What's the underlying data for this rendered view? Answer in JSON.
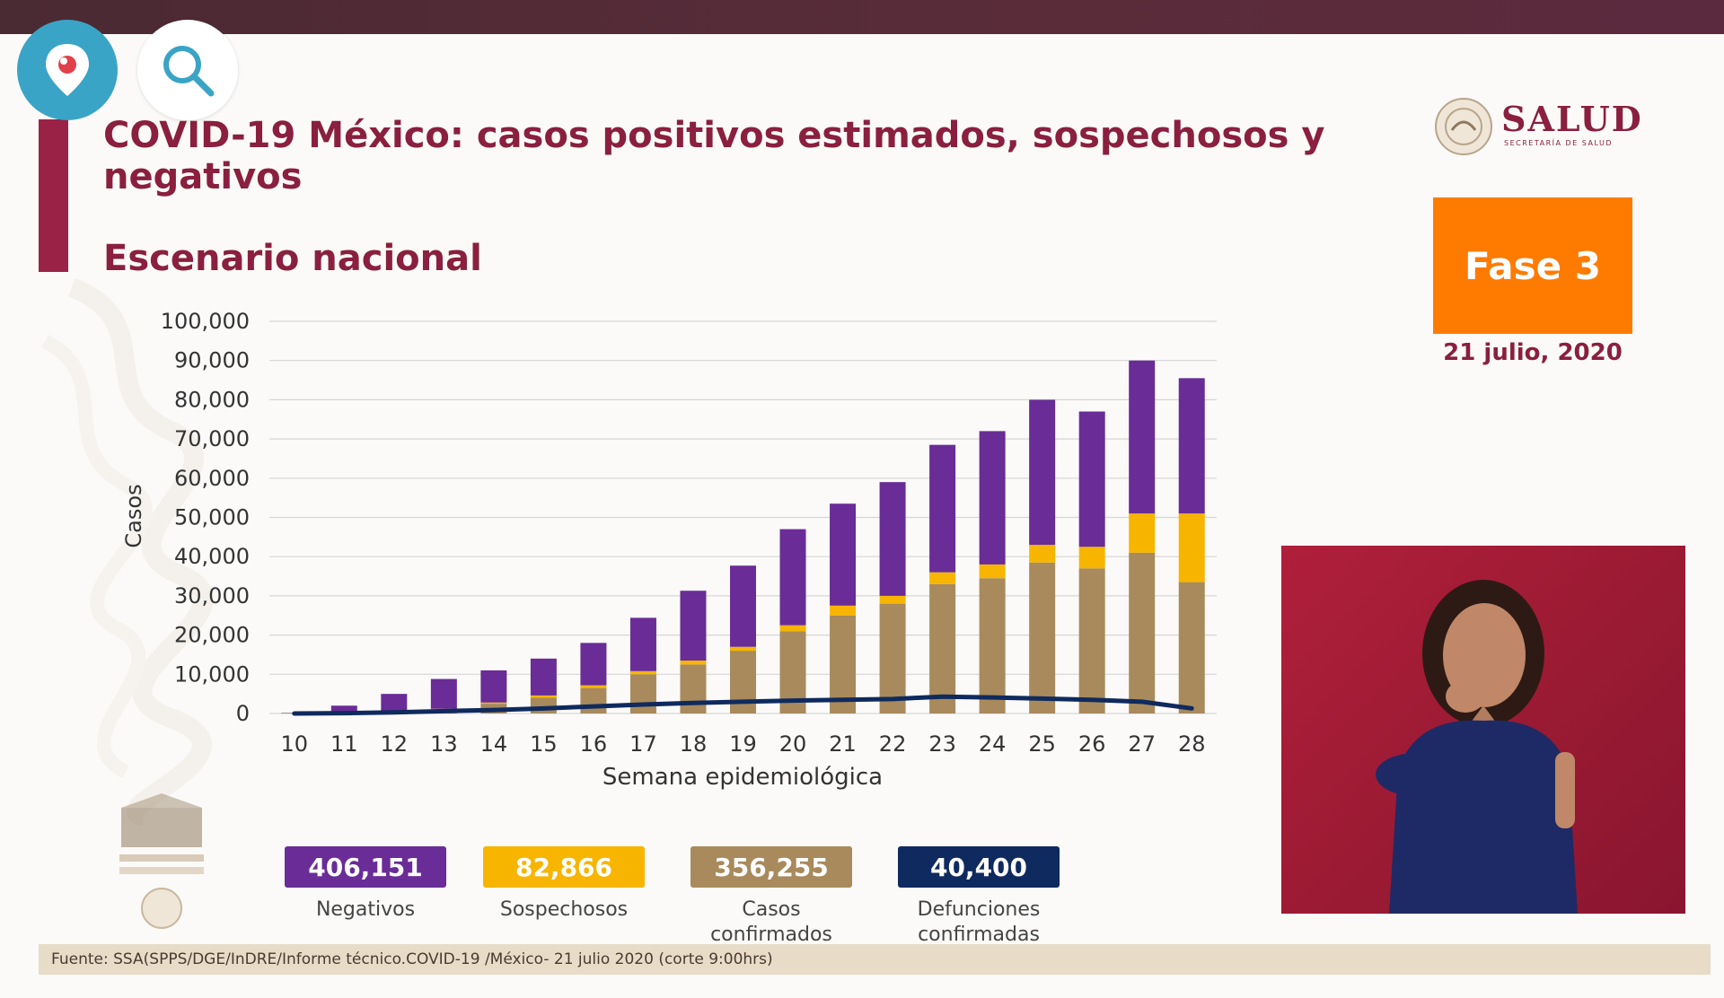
{
  "header": {
    "title": "COVID-19 México: casos positivos estimados, sospechosos y negativos",
    "subtitle": "Escenario nacional"
  },
  "logo": {
    "text": "SALUD",
    "subtext": "SECRETARÍA DE SALUD"
  },
  "phase": {
    "label": "Fase 3",
    "date": "21 julio, 2020",
    "color": "#ff7b00"
  },
  "totals": [
    {
      "value": "406,151",
      "label": "Negativos",
      "color": "#6a2c96"
    },
    {
      "value": "82,866",
      "label": "Sospechosos",
      "color": "#f7b500"
    },
    {
      "value": "356,255",
      "label": "Casos confirmados",
      "color": "#a88a5c"
    },
    {
      "value": "40,400",
      "label": "Defunciones confirmadas",
      "color": "#0f2a5e"
    }
  ],
  "footer": {
    "source": "Fuente: SSA(SPPS/DGE/InDRE/Informe técnico.COVID-19 /México- 21 julio 2020 (corte 9:00hrs)"
  },
  "icons": {
    "periscope": "periscope-icon",
    "search": "search-icon"
  },
  "chart_data": {
    "type": "bar",
    "stacked": true,
    "xlabel": "Semana epidemiológica",
    "ylabel": "Casos",
    "ylim": [
      0,
      100000
    ],
    "yticks": [
      0,
      10000,
      20000,
      30000,
      40000,
      50000,
      60000,
      70000,
      80000,
      90000,
      100000
    ],
    "ytick_labels": [
      "0",
      "10,000",
      "20,000",
      "30,000",
      "40,000",
      "50,000",
      "60,000",
      "70,000",
      "80,000",
      "90,000",
      "100,000"
    ],
    "grid": true,
    "categories": [
      "10",
      "11",
      "12",
      "13",
      "14",
      "15",
      "16",
      "17",
      "18",
      "19",
      "20",
      "21",
      "22",
      "23",
      "24",
      "25",
      "26",
      "27",
      "28"
    ],
    "series": [
      {
        "key": "confirmados",
        "color": "#a88a5c",
        "values": [
          50,
          300,
          600,
          1000,
          2500,
          4000,
          6500,
          10000,
          12500,
          16000,
          21000,
          25000,
          28000,
          33000,
          34500,
          38500,
          37000,
          41000,
          33500
        ]
      },
      {
        "key": "sospechosos",
        "color": "#f7b500",
        "values": [
          0,
          50,
          100,
          200,
          300,
          600,
          700,
          800,
          1000,
          1000,
          1500,
          2500,
          2000,
          3000,
          3500,
          4500,
          5500,
          10000,
          17500
        ]
      },
      {
        "key": "negativos",
        "color": "#6a2c96",
        "values": [
          100,
          1650,
          4300,
          7600,
          8200,
          9400,
          10800,
          13600,
          17800,
          20700,
          24500,
          26000,
          29000,
          32500,
          34000,
          37000,
          34500,
          39000,
          34500
        ]
      }
    ],
    "line": {
      "key": "defunciones",
      "color": "#0f2a5e",
      "values": [
        0,
        100,
        300,
        600,
        900,
        1300,
        1800,
        2300,
        2700,
        3000,
        3300,
        3500,
        3700,
        4300,
        4100,
        3800,
        3500,
        3000,
        1300
      ]
    }
  }
}
